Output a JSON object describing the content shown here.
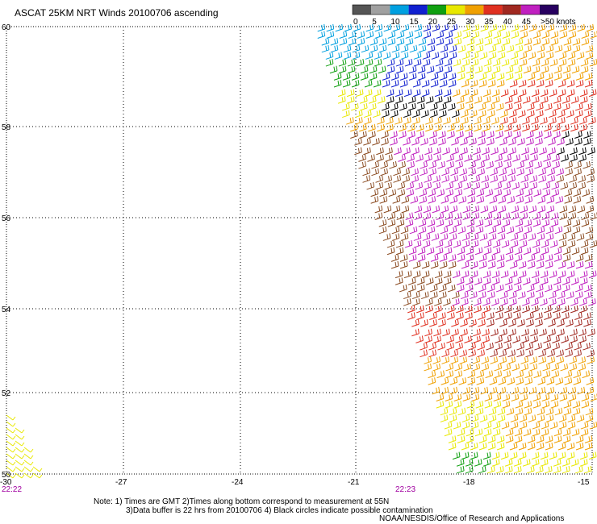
{
  "title": "ASCAT 25KM NRT Winds 20100706 ascending",
  "colorbar": {
    "labels": [
      "0",
      "5",
      "10",
      "15",
      "20",
      "25",
      "30",
      "35",
      "40",
      "45",
      ">50 knots"
    ],
    "colors": [
      "#555555",
      "#a0a0a0",
      "#00a0e0",
      "#1020d0",
      "#10a010",
      "#e8e800",
      "#f0a000",
      "#e03020",
      "#a02820",
      "#c020c0",
      "#280060"
    ]
  },
  "axes": {
    "lon_labels": [
      "-30",
      "-27",
      "-24",
      "-21",
      "-18",
      "-15"
    ],
    "lat_labels": [
      "60",
      "58",
      "56",
      "54",
      "52",
      "50"
    ],
    "times": [
      "22:22",
      "22:23"
    ],
    "time_color": "#a000a0"
  },
  "notes": {
    "line1": "Note: 1) Times are GMT 2)Times along bottom correspond to measurement at 55N",
    "line2": "3)Data buffer is 22 hrs from 20100706 4) Black circles indicate possible contamination"
  },
  "credit": "NOAA/NESDIS/Office of Research and Applications"
}
